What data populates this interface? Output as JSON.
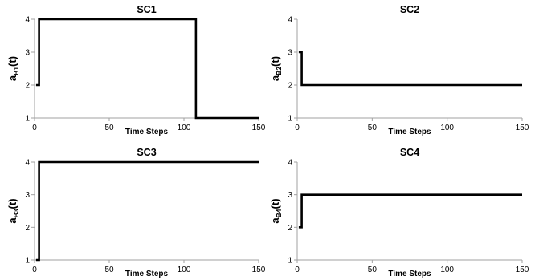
{
  "chart_data": [
    {
      "type": "line",
      "title": "SC1",
      "xlabel": "Time Steps",
      "ylabel": "a",
      "ylabel_sub": "B1",
      "ylabel_suffix": "(t)",
      "xlim": [
        0,
        150
      ],
      "ylim": [
        1,
        4
      ],
      "xticks": [
        "0",
        "50",
        "100",
        "150"
      ],
      "yticks": [
        "1",
        "2",
        "3",
        "4"
      ],
      "grid": false,
      "x": [
        1,
        3,
        3,
        108,
        108,
        150
      ],
      "y": [
        2,
        2,
        4,
        4,
        1,
        1
      ]
    },
    {
      "type": "line",
      "title": "SC2",
      "xlabel": "Time Steps",
      "ylabel": "a",
      "ylabel_sub": "B2",
      "ylabel_suffix": "(t)",
      "xlim": [
        0,
        150
      ],
      "ylim": [
        1,
        4
      ],
      "xticks": [
        "0",
        "50",
        "100",
        "150"
      ],
      "yticks": [
        "1",
        "2",
        "3",
        "4"
      ],
      "grid": false,
      "x": [
        1,
        3,
        3,
        150
      ],
      "y": [
        3,
        3,
        2,
        2
      ]
    },
    {
      "type": "line",
      "title": "SC3",
      "xlabel": "Time Steps",
      "ylabel": "a",
      "ylabel_sub": "B3",
      "ylabel_suffix": "(t)",
      "xlim": [
        0,
        150
      ],
      "ylim": [
        1,
        4
      ],
      "xticks": [
        "0",
        "50",
        "100",
        "150"
      ],
      "yticks": [
        "1",
        "2",
        "3",
        "4"
      ],
      "grid": false,
      "x": [
        1,
        3,
        3,
        150
      ],
      "y": [
        1,
        1,
        4,
        4
      ]
    },
    {
      "type": "line",
      "title": "SC4",
      "xlabel": "Time Steps",
      "ylabel": "a",
      "ylabel_sub": "B4",
      "ylabel_suffix": "(t)",
      "xlim": [
        0,
        150
      ],
      "ylim": [
        1,
        4
      ],
      "xticks": [
        "0",
        "50",
        "100",
        "150"
      ],
      "yticks": [
        "1",
        "2",
        "3",
        "4"
      ],
      "grid": false,
      "x": [
        1,
        3,
        3,
        150
      ],
      "y": [
        2,
        2,
        3,
        3
      ]
    }
  ]
}
